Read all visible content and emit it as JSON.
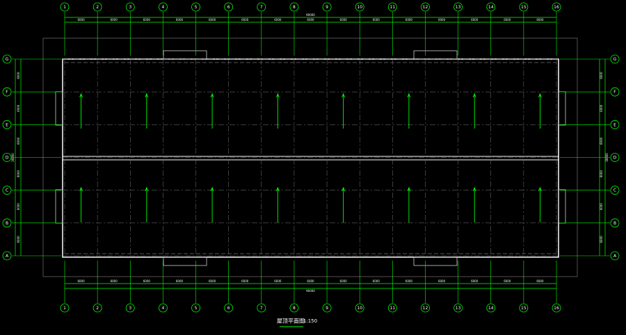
{
  "columns": [
    "1",
    "2",
    "3",
    "4",
    "5",
    "6",
    "7",
    "8",
    "9",
    "10",
    "11",
    "12",
    "13",
    "14",
    "15",
    "16"
  ],
  "rows": [
    "G",
    "F",
    "E",
    "D",
    "C",
    "B",
    "A"
  ],
  "dimensions": {
    "column_total": "90000",
    "column_spans": [
      "6000",
      "6000",
      "6000",
      "6000",
      "6000",
      "6000",
      "6000",
      "6000",
      "6000",
      "6000",
      "6000",
      "6000",
      "6000",
      "6000",
      "6000"
    ],
    "row_total": "36000",
    "row_spans": [
      "6000",
      "6000",
      "6000",
      "6000",
      "6000",
      "6000"
    ]
  },
  "title": "屋顶平面图",
  "scale": "1:150"
}
